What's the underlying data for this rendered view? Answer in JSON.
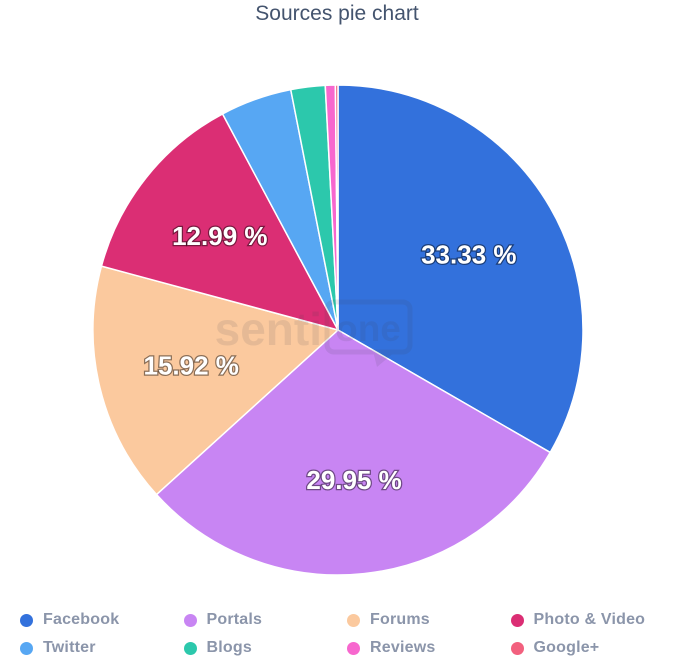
{
  "title": "Sources pie chart",
  "watermark": {
    "left": "senti",
    "bubble": "one"
  },
  "chart_data": {
    "type": "pie",
    "title": "Sources pie chart",
    "legend_position": "bottom",
    "start_angle_deg": 0,
    "direction": "clockwise",
    "label_radius": 151,
    "slices": [
      {
        "name": "Facebook",
        "value": 33.33,
        "display_label": "33.33 %",
        "color": "#3371dc"
      },
      {
        "name": "Portals",
        "value": 29.95,
        "display_label": "29.95 %",
        "color": "#c885f3"
      },
      {
        "name": "Forums",
        "value": 15.92,
        "display_label": "15.92 %",
        "color": "#fbc99e"
      },
      {
        "name": "Photo & Video",
        "value": 12.99,
        "display_label": "12.99 %",
        "color": "#db2e74"
      },
      {
        "name": "Twitter",
        "value": 4.72,
        "display_label": "",
        "color": "#57a7f3"
      },
      {
        "name": "Blogs",
        "value": 2.26,
        "display_label": "",
        "color": "#2cc8ac"
      },
      {
        "name": "Reviews",
        "value": 0.66,
        "display_label": "",
        "color": "#f767ce"
      },
      {
        "name": "Google+",
        "value": 0.17,
        "display_label": "",
        "color": "#f2607e"
      }
    ]
  }
}
